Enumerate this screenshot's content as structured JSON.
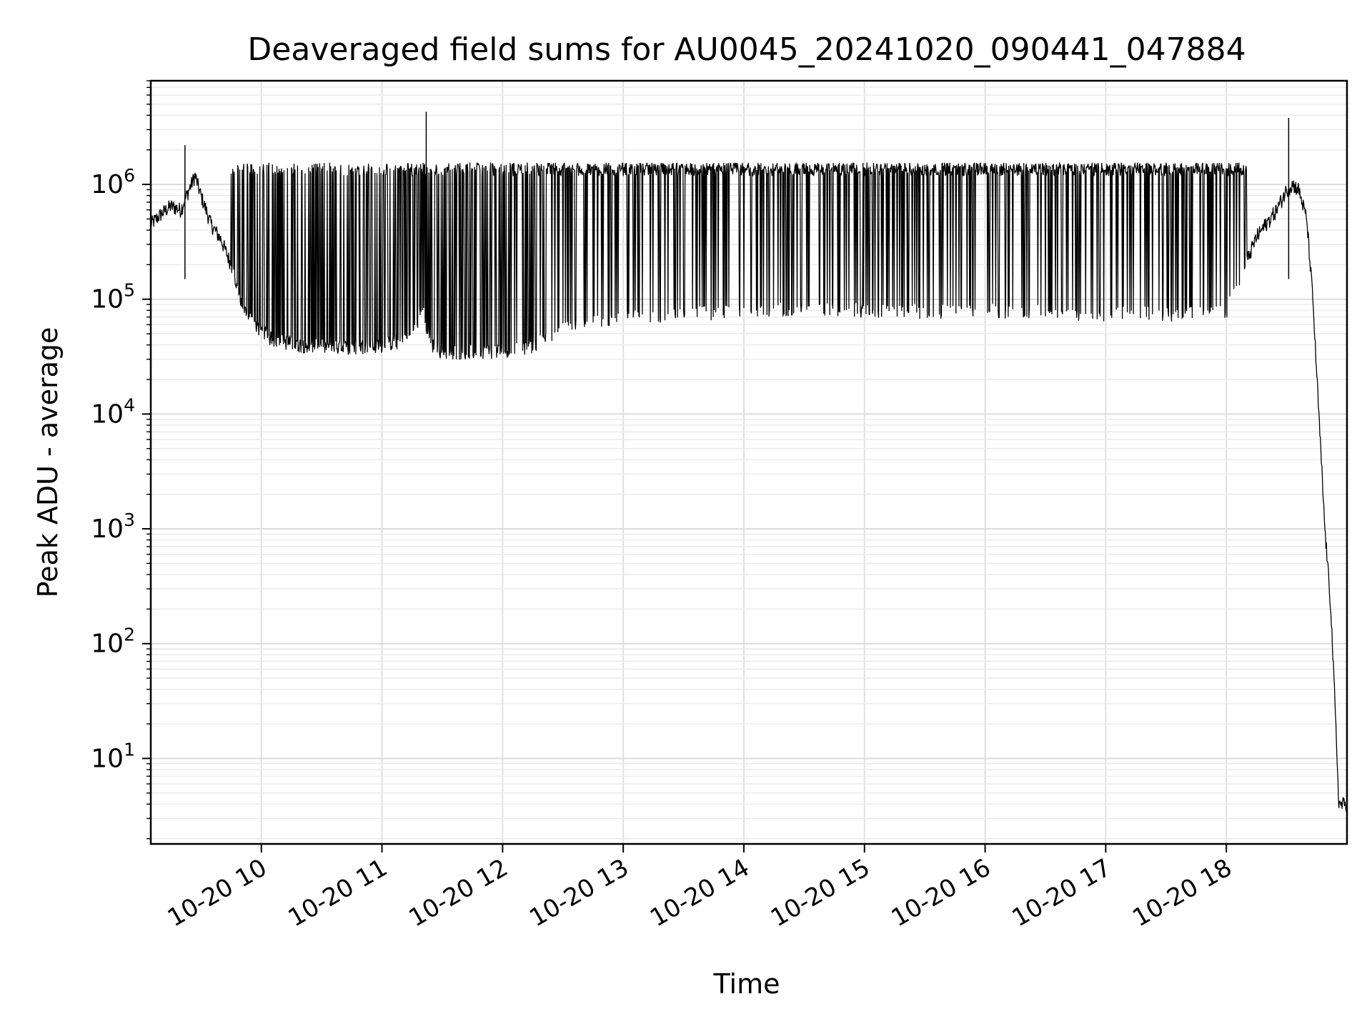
{
  "chart_data": {
    "type": "line",
    "title": "Deaveraged field sums for AU0045_20241020_090441_047884",
    "xlabel": "Time",
    "ylabel": "Peak ADU - average",
    "x_range": [
      "2024-10-20 09:05",
      "2024-10-20 19:00"
    ],
    "y_range": [
      1.8,
      8000000
    ],
    "y_scale": "log",
    "grid": true,
    "x_ticks": [
      {
        "value": "2024-10-20 10:00",
        "label": "10-20 10"
      },
      {
        "value": "2024-10-20 11:00",
        "label": "10-20 11"
      },
      {
        "value": "2024-10-20 12:00",
        "label": "10-20 12"
      },
      {
        "value": "2024-10-20 13:00",
        "label": "10-20 13"
      },
      {
        "value": "2024-10-20 14:00",
        "label": "10-20 14"
      },
      {
        "value": "2024-10-20 15:00",
        "label": "10-20 15"
      },
      {
        "value": "2024-10-20 16:00",
        "label": "10-20 16"
      },
      {
        "value": "2024-10-20 17:00",
        "label": "10-20 17"
      },
      {
        "value": "2024-10-20 18:00",
        "label": "10-20 18"
      }
    ],
    "y_ticks": [
      {
        "value": 10,
        "base": "10",
        "exp": "1"
      },
      {
        "value": 100,
        "base": "10",
        "exp": "2"
      },
      {
        "value": 1000,
        "base": "10",
        "exp": "3"
      },
      {
        "value": 10000,
        "base": "10",
        "exp": "4"
      },
      {
        "value": 100000,
        "base": "10",
        "exp": "5"
      },
      {
        "value": 1000000,
        "base": "10",
        "exp": "6"
      }
    ],
    "series": [
      {
        "color": "#000000",
        "x": [
          "2024-10-20 09:05",
          "2024-10-20 09:10",
          "2024-10-20 09:15",
          "2024-10-20 09:20",
          "2024-10-20 09:24",
          "2024-10-20 09:27",
          "2024-10-20 09:30",
          "2024-10-20 09:35",
          "2024-10-20 09:40",
          "2024-10-20 09:45",
          "2024-10-20 09:50",
          "2024-10-20 09:55",
          "2024-10-20 10:05",
          "2024-10-20 10:20",
          "2024-10-20 10:40",
          "2024-10-20 11:00",
          "2024-10-20 11:15",
          "2024-10-20 11:20",
          "2024-10-20 11:22",
          "2024-10-20 11:25",
          "2024-10-20 11:30",
          "2024-10-20 11:45",
          "2024-10-20 12:00",
          "2024-10-20 12:15",
          "2024-10-20 12:30",
          "2024-10-20 12:45",
          "2024-10-20 13:00",
          "2024-10-20 13:30",
          "2024-10-20 14:00",
          "2024-10-20 14:30",
          "2024-10-20 15:00",
          "2024-10-20 15:30",
          "2024-10-20 16:00",
          "2024-10-20 16:30",
          "2024-10-20 17:00",
          "2024-10-20 17:30",
          "2024-10-20 18:00",
          "2024-10-20 18:15",
          "2024-10-20 18:25",
          "2024-10-20 18:30",
          "2024-10-20 18:33",
          "2024-10-20 18:36",
          "2024-10-20 18:40",
          "2024-10-20 18:43",
          "2024-10-20 18:46",
          "2024-10-20 18:49",
          "2024-10-20 18:52",
          "2024-10-20 18:54",
          "2024-10-20 18:56",
          "2024-10-20 18:58",
          "2024-10-20 18:59",
          "2024-10-20 19:00"
        ],
        "y": [
          450000,
          550000,
          650000,
          600000,
          900000,
          1200000,
          800000,
          450000,
          330000,
          200000,
          90000,
          65000,
          45000,
          40000,
          38000,
          40000,
          45000,
          90000,
          55000,
          40000,
          35000,
          35000,
          36000,
          40000,
          55000,
          65000,
          70000,
          75000,
          80000,
          85000,
          80000,
          80000,
          80000,
          78000,
          76000,
          75000,
          78000,
          350000,
          600000,
          900000,
          1000000,
          900000,
          500000,
          100000,
          10000,
          1000,
          200,
          30,
          4,
          4,
          4,
          4
        ]
      }
    ],
    "spikes": [
      {
        "x": "2024-10-20 09:22",
        "y": 2200000
      },
      {
        "x": "2024-10-20 11:22",
        "y": 4300000
      },
      {
        "x": "2024-10-20 18:31",
        "y": 3800000
      }
    ],
    "oscillation": {
      "description_range": [
        "2024-10-20 09:45",
        "2024-10-20 18:10"
      ],
      "upper_envelope": 1400000
    }
  }
}
